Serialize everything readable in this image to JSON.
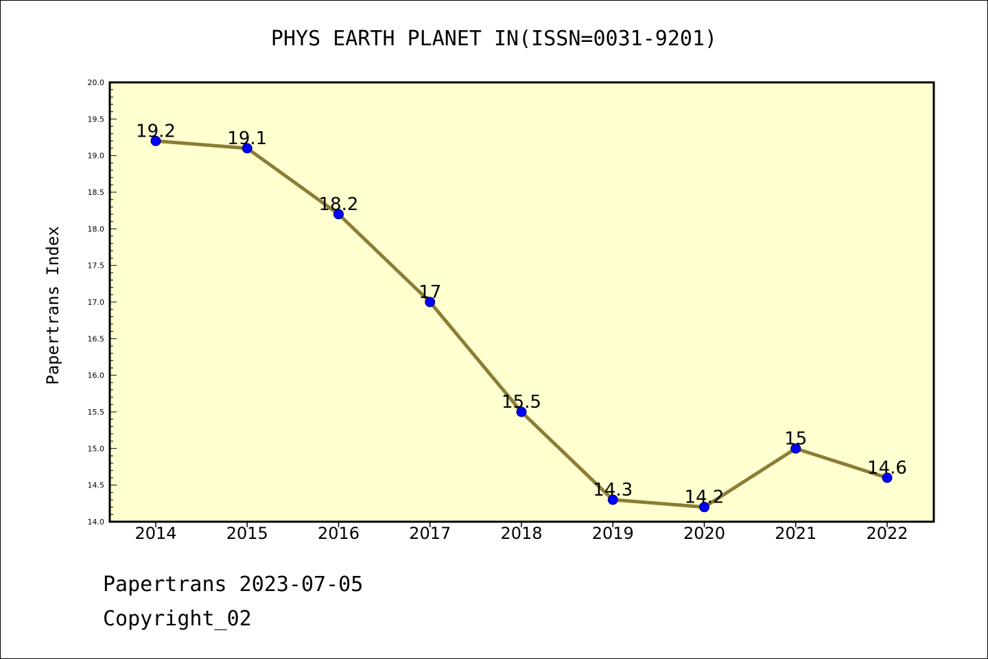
{
  "chart_data": {
    "type": "line",
    "title": "PHYS EARTH PLANET IN(ISSN=0031-9201)",
    "xlabel": "",
    "ylabel": "Papertrans Index",
    "categories": [
      "2014",
      "2015",
      "2016",
      "2017",
      "2018",
      "2019",
      "2020",
      "2021",
      "2022"
    ],
    "series": [
      {
        "values": [
          19.2,
          19.1,
          18.2,
          17.0,
          15.5,
          14.3,
          14.2,
          15.0,
          14.6
        ]
      }
    ],
    "data_labels": [
      "19.2",
      "19.1",
      "18.2",
      "17",
      "15.5",
      "14.3",
      "14.2",
      "15",
      "14.6"
    ],
    "ylim": [
      14.0,
      20.0
    ],
    "yticks": [
      14.0,
      14.5,
      15.0,
      15.5,
      16.0,
      16.5,
      17.0,
      17.5,
      18.0,
      18.5,
      19.0,
      19.5,
      20.0
    ],
    "ytick_labels": [
      "14.0",
      "14.5",
      "15.0",
      "15.5",
      "16.0",
      "16.5",
      "17.0",
      "17.5",
      "18.0",
      "18.5",
      "19.0",
      "19.5",
      "20.0"
    ],
    "yminor_step": 0.1,
    "grid": false,
    "legend": "none",
    "colors": {
      "plot_background": "#ffffd0",
      "line": "#8b7d35",
      "marker_fill": "#0000ff",
      "marker_edge": "#000060",
      "axis": "#000000"
    }
  },
  "footer": {
    "line1": "Papertrans 2023-07-05",
    "line2": "Copyright_02"
  }
}
